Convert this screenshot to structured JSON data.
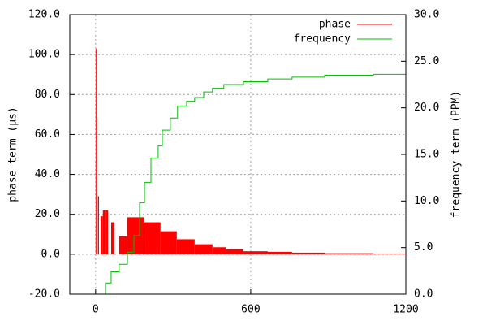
{
  "chart_data": {
    "type": "combo",
    "ylabel": "phase term (µs)",
    "y2label": "frequency term (PPM)",
    "xlim": [
      -100,
      1200
    ],
    "xticks": [
      0,
      600,
      1200
    ],
    "ylim": [
      -20,
      120
    ],
    "yticks": [
      {
        "value": -20,
        "label": "-20.0"
      },
      {
        "value": 0,
        "label": "0.0"
      },
      {
        "value": 20,
        "label": "20.0"
      },
      {
        "value": 40,
        "label": "40.0"
      },
      {
        "value": 60,
        "label": "60.0"
      },
      {
        "value": 80,
        "label": "80.0"
      },
      {
        "value": 100,
        "label": "100.0"
      },
      {
        "value": 120,
        "label": "120.0"
      }
    ],
    "y2lim": [
      0,
      30
    ],
    "y2ticks": [
      {
        "value": 0,
        "label": "0.0"
      },
      {
        "value": 5,
        "label": "5.0"
      },
      {
        "value": 10,
        "label": "10.0"
      },
      {
        "value": 15,
        "label": "15.0"
      },
      {
        "value": 20,
        "label": "20.0"
      },
      {
        "value": 25,
        "label": "25.0"
      },
      {
        "value": 30,
        "label": "30.0"
      }
    ],
    "grid": true,
    "legend": "top-right",
    "series": [
      {
        "name": "phase",
        "type": "bar",
        "color": "#ff0000",
        "x_start": [
          0,
          4,
          9,
          19,
          28,
          37,
          60,
          91,
          122,
          188,
          251,
          314,
          383,
          452,
          503,
          572,
          666,
          760,
          886,
          1074
        ],
        "x_end": [
          3,
          7,
          13,
          28,
          37,
          48,
          72,
          122,
          188,
          251,
          314,
          383,
          452,
          503,
          572,
          666,
          760,
          886,
          1074,
          1200
        ],
        "values": [
          103,
          68,
          29,
          19,
          22,
          22,
          16,
          9,
          18.5,
          16,
          11.5,
          7.5,
          5,
          3.5,
          2.5,
          1.5,
          1.2,
          0.8,
          0.5,
          0.2
        ]
      },
      {
        "name": "frequency",
        "type": "step",
        "axis": "y2",
        "color": "#00c000",
        "x": [
          22,
          38,
          60,
          91,
          123,
          148,
          170,
          189,
          214,
          242,
          258,
          289,
          317,
          352,
          383,
          418,
          452,
          496,
          572,
          666,
          760,
          886,
          1074,
          1200
        ],
        "values": [
          0,
          1.2,
          2.4,
          3.2,
          4.5,
          6.3,
          9.8,
          12,
          14.6,
          15.9,
          17.6,
          18.9,
          20.2,
          20.7,
          21.1,
          21.7,
          22.1,
          22.5,
          22.8,
          23.1,
          23.3,
          23.5,
          23.6,
          23.7
        ]
      }
    ]
  }
}
